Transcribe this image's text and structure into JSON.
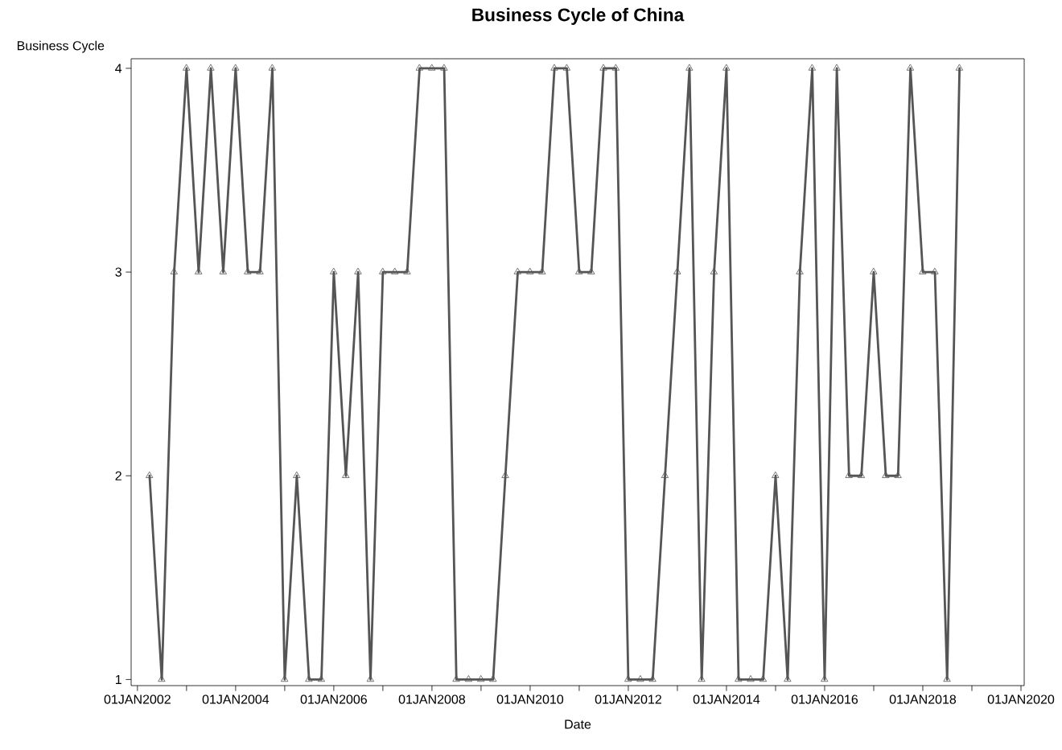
{
  "chart_data": {
    "type": "line",
    "title": "Business Cycle of China",
    "xlabel": "Date",
    "ylabel": "Business Cycle",
    "x": [
      "2002-04-01",
      "2002-07-01",
      "2002-10-01",
      "2003-01-01",
      "2003-04-01",
      "2003-07-01",
      "2003-10-01",
      "2004-01-01",
      "2004-04-01",
      "2004-07-01",
      "2004-10-01",
      "2005-01-01",
      "2005-04-01",
      "2005-07-01",
      "2005-10-01",
      "2006-01-01",
      "2006-04-01",
      "2006-07-01",
      "2006-10-01",
      "2007-01-01",
      "2007-04-01",
      "2007-07-01",
      "2007-10-01",
      "2008-01-01",
      "2008-04-01",
      "2008-07-01",
      "2008-10-01",
      "2009-01-01",
      "2009-04-01",
      "2009-07-01",
      "2009-10-01",
      "2010-01-01",
      "2010-04-01",
      "2010-07-01",
      "2010-10-01",
      "2011-01-01",
      "2011-04-01",
      "2011-07-01",
      "2011-10-01",
      "2012-01-01",
      "2012-04-01",
      "2012-07-01",
      "2012-10-01",
      "2013-01-01",
      "2013-04-01",
      "2013-07-01",
      "2013-10-01",
      "2014-01-01",
      "2014-04-01",
      "2014-07-01",
      "2014-10-01",
      "2015-01-01",
      "2015-04-01",
      "2015-07-01",
      "2015-10-01",
      "2016-01-01",
      "2016-04-01",
      "2016-07-01",
      "2016-10-01",
      "2017-01-01",
      "2017-04-01",
      "2017-07-01",
      "2017-10-01",
      "2018-01-01",
      "2018-04-01",
      "2018-07-01",
      "2018-10-01"
    ],
    "series": [
      {
        "color": "#555555",
        "values": [
          2,
          1,
          3,
          4,
          3,
          4,
          3,
          4,
          3,
          3,
          4,
          1,
          2,
          1,
          1,
          3,
          2,
          3,
          1,
          3,
          3,
          3,
          4,
          4,
          4,
          1,
          1,
          1,
          1,
          2,
          3,
          3,
          3,
          4,
          4,
          3,
          3,
          4,
          4,
          1,
          1,
          1,
          2,
          3,
          4,
          1,
          3,
          4,
          1,
          1,
          1,
          2,
          1,
          3,
          4,
          1,
          4,
          2,
          2,
          3,
          2,
          2,
          4,
          3,
          3,
          1,
          4
        ]
      }
    ],
    "xlim": [
      "2001-11-15",
      "2020-01-25"
    ],
    "xticks": [
      {
        "value": "2002-01-01",
        "label": "01JAN2002"
      },
      {
        "value": "2003-01-01",
        "label": null
      },
      {
        "value": "2004-01-01",
        "label": "01JAN2004"
      },
      {
        "value": "2005-01-01",
        "label": null
      },
      {
        "value": "2006-01-01",
        "label": "01JAN2006"
      },
      {
        "value": "2007-01-01",
        "label": null
      },
      {
        "value": "2008-01-01",
        "label": "01JAN2008"
      },
      {
        "value": "2009-01-01",
        "label": null
      },
      {
        "value": "2010-01-01",
        "label": "01JAN2010"
      },
      {
        "value": "2011-01-01",
        "label": null
      },
      {
        "value": "2012-01-01",
        "label": "01JAN2012"
      },
      {
        "value": "2013-01-01",
        "label": null
      },
      {
        "value": "2014-01-01",
        "label": "01JAN2014"
      },
      {
        "value": "2015-01-01",
        "label": null
      },
      {
        "value": "2016-01-01",
        "label": "01JAN2016"
      },
      {
        "value": "2017-01-01",
        "label": null
      },
      {
        "value": "2018-01-01",
        "label": "01JAN2018"
      },
      {
        "value": "2019-01-01",
        "label": null
      },
      {
        "value": "2020-01-01",
        "label": "01JAN2020"
      }
    ],
    "ylim": [
      0.97,
      4.047
    ],
    "yticks": [
      1,
      2,
      3,
      4
    ],
    "marker": "triangle",
    "line_style": "solid",
    "grid": false
  }
}
